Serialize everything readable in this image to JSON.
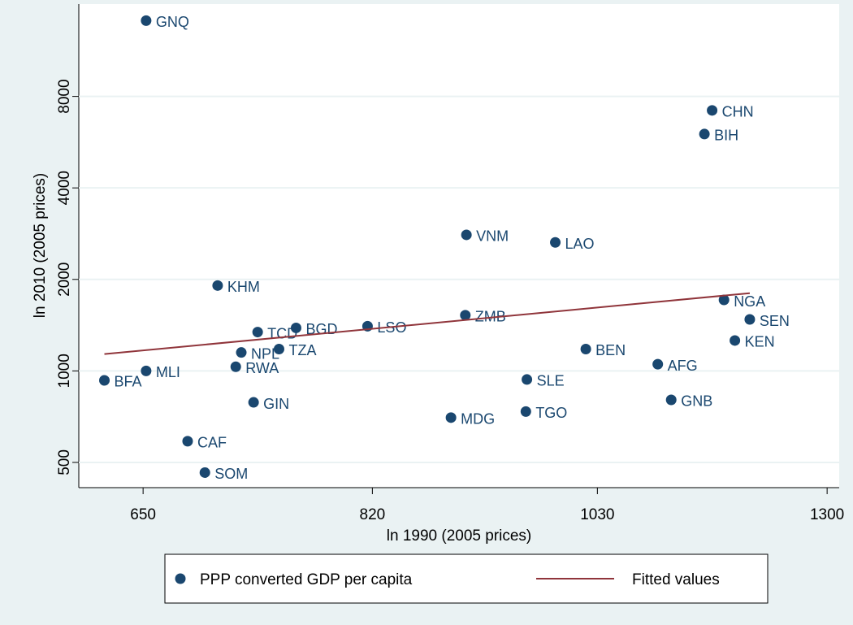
{
  "chart_data": {
    "type": "scatter",
    "x_label": "ln 1990 (2005 prices)",
    "y_label": "ln 2010 (2005 prices)",
    "xscale": "log",
    "yscale": "log",
    "xlim": [
      609,
      1316
    ],
    "ylim": [
      413,
      16100
    ],
    "xticks": [
      650,
      820,
      1030,
      1300
    ],
    "yticks": [
      500,
      1000,
      2000,
      4000,
      8000
    ],
    "grid": true,
    "legend": "bottom",
    "series": [
      {
        "name": "PPP converted GDP per capita",
        "color": "#1a476f",
        "type": "scatter",
        "labels": [
          "GNQ",
          "CHN",
          "BIH",
          "VNM",
          "LAO",
          "KHM",
          "NGA",
          "SEN",
          "ZMB",
          "LSO",
          "BGD",
          "TCD",
          "KEN",
          "BEN",
          "TZA",
          "NPL",
          "AFG",
          "RWA",
          "MLI",
          "BFA",
          "SLE",
          "GIN",
          "GNB",
          "TGO",
          "MDG",
          "CAF",
          "SOM"
        ],
        "x": [
          652,
          1157,
          1148,
          902,
          987,
          701,
          1171,
          1202,
          901,
          816,
          759,
          730,
          1184,
          1018,
          746,
          718,
          1095,
          714,
          652,
          625,
          959,
          727,
          1110,
          958,
          888,
          680,
          692
        ],
        "values": [
          14200,
          7195,
          6015,
          2803,
          2647,
          1909,
          1712,
          1477,
          1525,
          1403,
          1385,
          1342,
          1259,
          1180,
          1180,
          1150,
          1052,
          1032,
          1000,
          931,
          937,
          788,
          803,
          735,
          702,
          587,
          463
        ]
      },
      {
        "name": "Fitted values",
        "color": "#90353b",
        "type": "line",
        "x": [
          625,
          1202
        ],
        "values": [
          1136,
          1802
        ]
      }
    ]
  }
}
